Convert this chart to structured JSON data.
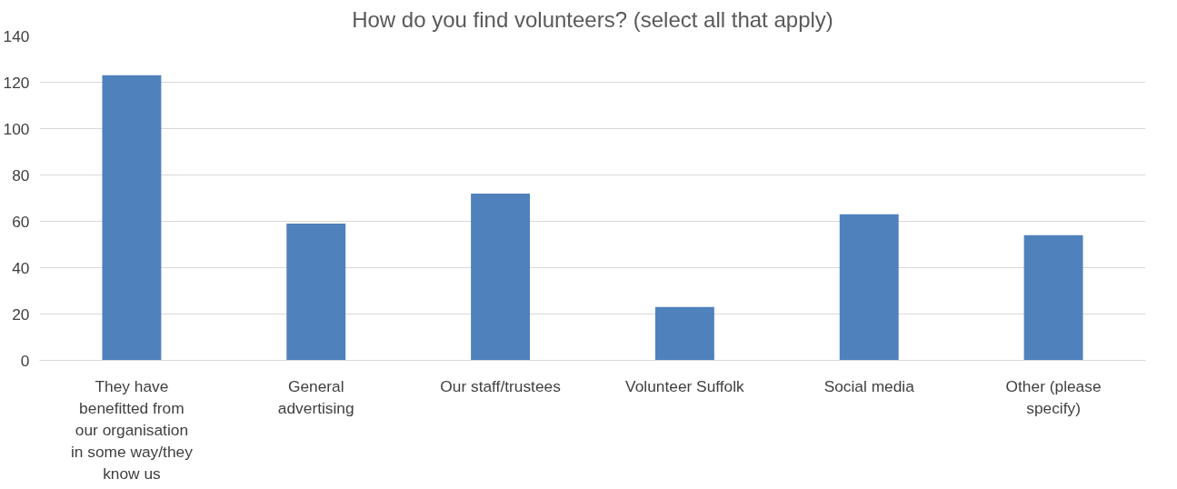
{
  "chart_data": {
    "type": "bar",
    "title": "How do you find volunteers? (select all that apply)",
    "categories": [
      "They have benefitted from our organisation in some way/they know us",
      "General advertising",
      "Our staff/trustees",
      "Volunteer Suffolk",
      "Social media",
      "Other (please specify)"
    ],
    "values": [
      123,
      59,
      72,
      23,
      63,
      54
    ],
    "color": "#4f81bd",
    "ylim": [
      0,
      140
    ],
    "yticks": [
      0,
      20,
      40,
      60,
      80,
      100,
      120,
      140
    ],
    "grid": "y"
  }
}
